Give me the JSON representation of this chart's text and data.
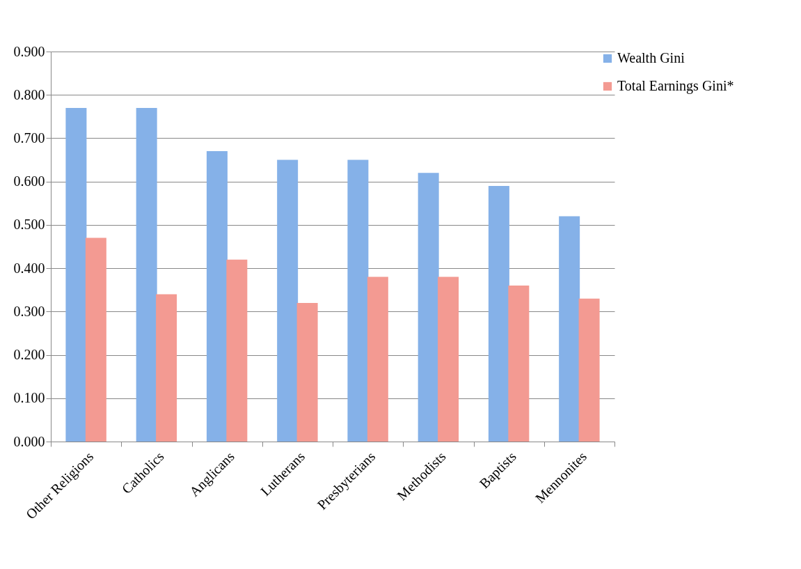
{
  "chart_data": {
    "type": "bar",
    "categories": [
      "Other Religions",
      "Catholics",
      "Anglicans",
      "Lutherans",
      "Presbyterians",
      "Methodists",
      "Baptists",
      "Mennonites"
    ],
    "series": [
      {
        "name": "Wealth Gini",
        "color": "#85b1e8",
        "values": [
          0.77,
          0.77,
          0.67,
          0.65,
          0.65,
          0.62,
          0.59,
          0.52
        ]
      },
      {
        "name": "Total Earnings Gini*",
        "color": "#f39a92",
        "values": [
          0.47,
          0.34,
          0.42,
          0.32,
          0.38,
          0.38,
          0.36,
          0.33
        ]
      }
    ],
    "ylim": [
      0,
      0.9
    ],
    "yticks": [
      {
        "value": 0,
        "label": "0.000"
      },
      {
        "value": 0.1,
        "label": "0.100"
      },
      {
        "value": 0.2,
        "label": "0.200"
      },
      {
        "value": 0.3,
        "label": "0.300"
      },
      {
        "value": 0.4,
        "label": "0.400"
      },
      {
        "value": 0.5,
        "label": "0.500"
      },
      {
        "value": 0.6,
        "label": "0.600"
      },
      {
        "value": 0.7,
        "label": "0.700"
      },
      {
        "value": 0.8,
        "label": "0.800"
      },
      {
        "value": 0.9,
        "label": "0.900"
      }
    ],
    "grid": "y",
    "legend": "right"
  }
}
